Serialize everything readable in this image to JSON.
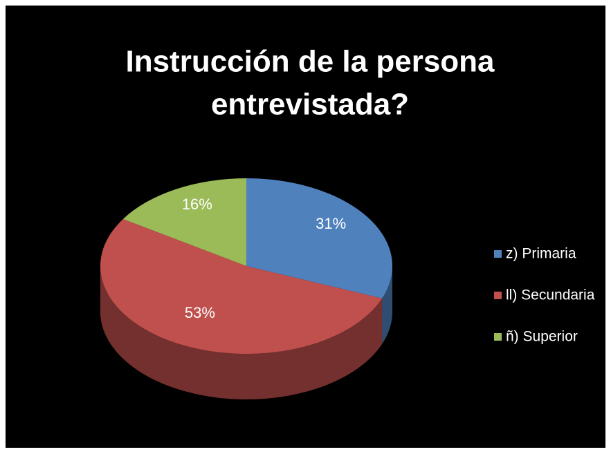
{
  "chart_data": {
    "type": "pie",
    "title": [
      "Instrucción de la persona",
      "entrevistada?"
    ],
    "categories": [
      "z) Primaria",
      "ll) Secundaria",
      "ñ) Superior"
    ],
    "values": [
      31,
      53,
      16
    ],
    "value_labels": [
      "31%",
      "53%",
      "16%"
    ],
    "colors": [
      "#4f81bd",
      "#c0504d",
      "#9bbb59"
    ],
    "legend": "right"
  }
}
